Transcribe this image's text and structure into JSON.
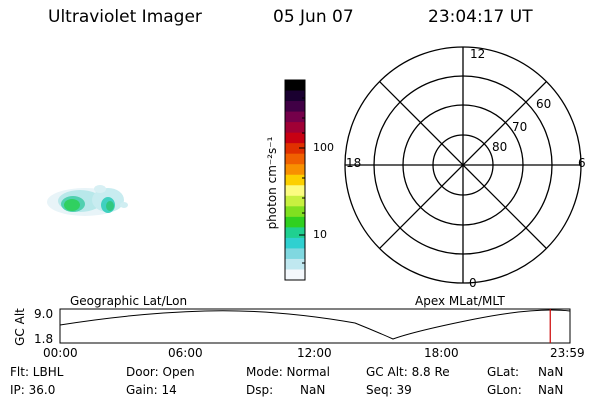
{
  "header": {
    "title": "Ultraviolet Imager",
    "date": "05 Jun 07",
    "time": "23:04:17 UT"
  },
  "colorbar": {
    "unit_label": "photon cm⁻²s⁻¹",
    "tick_100": "100",
    "tick_10": "10",
    "colors": [
      "#000000",
      "#1a0030",
      "#400045",
      "#75004a",
      "#a00035",
      "#c80012",
      "#e03000",
      "#f06000",
      "#f89000",
      "#fcd000",
      "#fcfc80",
      "#c8f040",
      "#80e020",
      "#30d020",
      "#20d090",
      "#30d0d0",
      "#80d8e0",
      "#c0e8f0",
      "#f4f8fc"
    ]
  },
  "polar_plot": {
    "mlt_labels": {
      "top": "12",
      "bottom": "0",
      "left": "18",
      "right": "6"
    },
    "lat_labels": [
      "60",
      "70",
      "80"
    ]
  },
  "timeline": {
    "left_title": "Geographic Lat/Lon",
    "right_title": "Apex MLat/MLT",
    "y_axis_label": "GC Alt",
    "y_ticks": [
      "9.0",
      "1.8"
    ],
    "x_ticks": [
      "00:00",
      "06:00",
      "12:00",
      "18:00",
      "23:59"
    ],
    "cursor_time_hours": 23.07,
    "cursor_color": "#cc0000"
  },
  "info": {
    "filter": "Flt: LBHL",
    "ip": "IP: 36.0",
    "door": "Door: Open",
    "gain": "Gain: 14",
    "mode": "Mode: Normal",
    "dsp": "Dsp:",
    "dsp_val": "NaN",
    "gcalt": "GC Alt: 8.8 Re",
    "seq": "Seq: 39",
    "glat": "GLat:",
    "glat_val": "NaN",
    "glon": "GLon:",
    "glon_val": "NaN"
  }
}
